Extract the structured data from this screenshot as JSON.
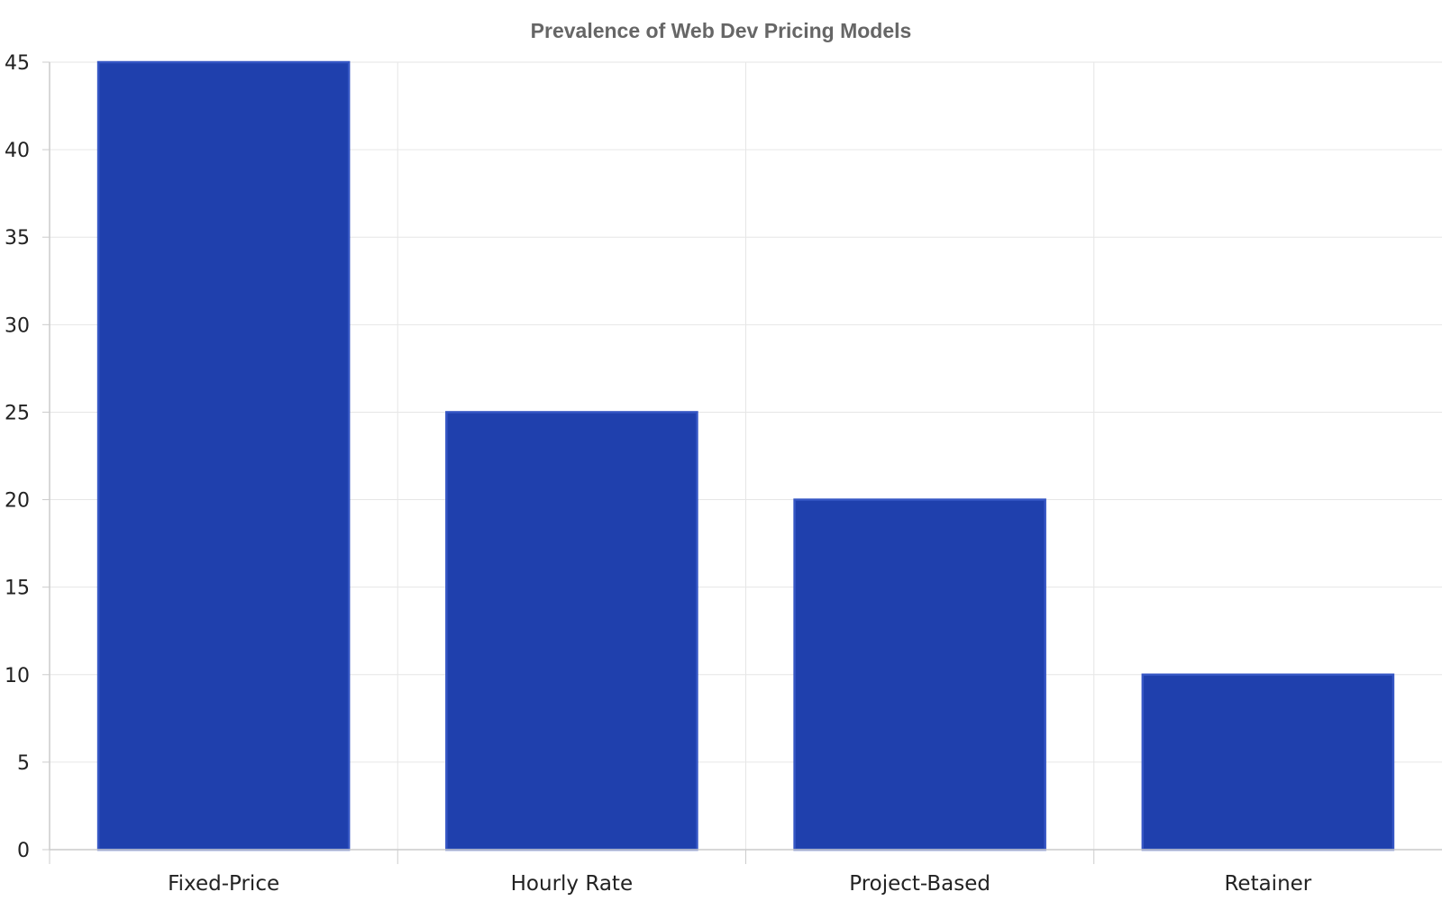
{
  "chart_data": {
    "type": "bar",
    "title": "Prevalence of Web Dev Pricing Models",
    "xlabel": "",
    "ylabel": "",
    "categories": [
      "Fixed-Price",
      "Hourly Rate",
      "Project-Based",
      "Retainer"
    ],
    "values": [
      45,
      25,
      20,
      10
    ],
    "ylim": [
      0,
      45
    ],
    "yticks": [
      0,
      5,
      10,
      15,
      20,
      25,
      30,
      35,
      40,
      45
    ],
    "grid": true,
    "legend": "none",
    "colors": {
      "bar_fill": "#1f40ad",
      "bar_stroke": "#3556c4",
      "grid": "#e6e6e6",
      "axis": "#cccccc",
      "title": "#666666"
    }
  }
}
